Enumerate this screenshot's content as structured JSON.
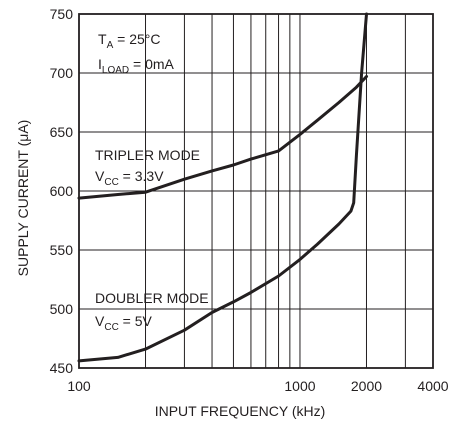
{
  "chart_data": {
    "type": "line",
    "xlabel": "INPUT FREQUENCY (kHz)",
    "ylabel": "SUPPLY CURRENT (μA)",
    "x_scale": "log",
    "xlim": [
      100,
      4000
    ],
    "ylim": [
      450,
      750
    ],
    "grid": true,
    "x_tick_labels": [
      "100",
      "1000",
      "2000",
      "4000"
    ],
    "y_tick_labels": [
      "450",
      "500",
      "550",
      "600",
      "650",
      "700",
      "750"
    ],
    "conditions": {
      "line1_main": "T",
      "line1_sub": "A",
      "line1_rest": " = 25°C",
      "line2_main": "I",
      "line2_sub": "LOAD",
      "line2_rest": " = 0mA"
    },
    "series": [
      {
        "label_line1": "TRIPLER MODE",
        "label_line2_main": "V",
        "label_line2_sub": "CC",
        "label_line2_rest": " = 3.3V",
        "x": [
          100,
          150,
          200,
          300,
          400,
          500,
          600,
          800,
          1000,
          1200,
          1500,
          1800,
          2000
        ],
        "y": [
          594,
          597,
          599,
          610,
          617,
          622,
          627,
          634,
          648,
          660,
          675,
          688,
          697
        ]
      },
      {
        "label_line1": "DOUBLER MODE",
        "label_line2_main": "V",
        "label_line2_sub": "CC",
        "label_line2_rest": " = 5V",
        "x": [
          100,
          150,
          200,
          300,
          400,
          500,
          600,
          800,
          1000,
          1200,
          1500,
          1700,
          1750,
          1800,
          1900,
          2000
        ],
        "y": [
          456,
          459,
          466,
          482,
          497,
          506,
          514,
          528,
          542,
          555,
          572,
          583,
          590,
          630,
          700,
          750
        ]
      }
    ]
  }
}
